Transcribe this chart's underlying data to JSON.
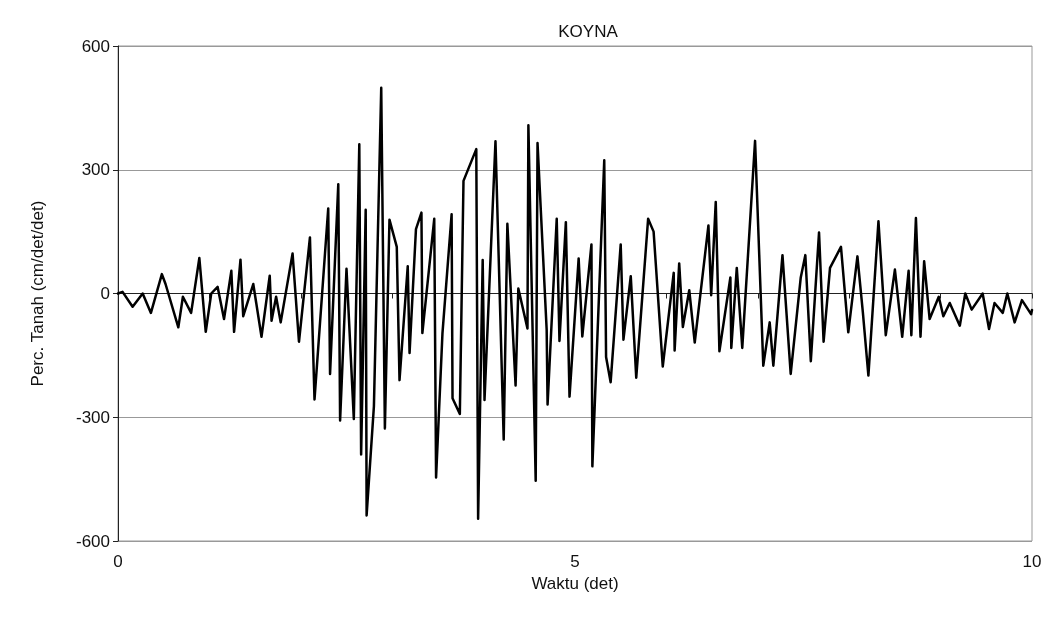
{
  "chart_data": {
    "type": "line",
    "title": "KOYNA",
    "xlabel": "Waktu (det)",
    "ylabel": "Perc. Tanah (cm/det/det)",
    "xlim": [
      0,
      10
    ],
    "ylim": [
      -600,
      600
    ],
    "xticks": [
      0,
      {
        "value": 1,
        "label": null
      },
      {
        "value": 2,
        "label": null
      },
      {
        "value": 3,
        "label": null
      },
      {
        "value": 4,
        "label": null
      },
      5,
      {
        "value": 6,
        "label": null
      },
      {
        "value": 7,
        "label": null
      },
      {
        "value": 8,
        "label": null
      },
      {
        "value": 9,
        "label": null
      },
      10
    ],
    "yticks": [
      -600,
      -300,
      0,
      300,
      600
    ],
    "grid": "y",
    "marker": "none",
    "line_style": "solid",
    "series": [
      {
        "color": "#000000",
        "x": [
          0,
          0.05,
          0.16,
          0.27,
          0.36,
          0.48,
          0.52,
          0.66,
          0.71,
          0.8,
          0.89,
          0.96,
          1.02,
          1.09,
          1.16,
          1.24,
          1.27,
          1.34,
          1.37,
          1.48,
          1.57,
          1.66,
          1.68,
          1.73,
          1.78,
          1.91,
          1.98,
          2.1,
          2.15,
          2.3,
          2.32,
          2.41,
          2.43,
          2.5,
          2.58,
          2.64,
          2.66,
          2.71,
          2.72,
          2.8,
          2.88,
          2.92,
          2.97,
          3.05,
          3.08,
          3.17,
          3.19,
          3.26,
          3.32,
          3.33,
          3.46,
          3.48,
          3.55,
          3.65,
          3.66,
          3.74,
          3.78,
          3.92,
          3.94,
          3.99,
          4.01,
          4.13,
          4.22,
          4.26,
          4.35,
          4.38,
          4.48,
          4.49,
          4.57,
          4.59,
          4.69,
          4.7,
          4.8,
          4.83,
          4.9,
          4.94,
          5.04,
          5.08,
          5.18,
          5.19,
          5.32,
          5.34,
          5.39,
          5.5,
          5.53,
          5.61,
          5.67,
          5.8,
          5.86,
          5.96,
          6.08,
          6.09,
          6.14,
          6.18,
          6.25,
          6.31,
          6.46,
          6.49,
          6.54,
          6.58,
          6.7,
          6.71,
          6.77,
          6.83,
          6.97,
          7.06,
          7.13,
          7.17,
          7.27,
          7.36,
          7.47,
          7.52,
          7.58,
          7.67,
          7.72,
          7.79,
          7.91,
          7.99,
          8.09,
          8.15,
          8.21,
          8.32,
          8.4,
          8.5,
          8.58,
          8.65,
          8.68,
          8.73,
          8.78,
          8.82,
          8.88,
          8.98,
          9.03,
          9.1,
          9.21,
          9.27,
          9.34,
          9.46,
          9.53,
          9.59,
          9.68,
          9.73,
          9.81,
          9.89,
          9.99,
          10
        ],
        "values": [
          0,
          4,
          -32,
          0,
          -47,
          47,
          23,
          -82,
          -8,
          -47,
          86,
          -93,
          0,
          16,
          -62,
          55,
          -93,
          82,
          -55,
          23,
          -105,
          43,
          -66,
          -8,
          -70,
          97,
          -117,
          136,
          -257,
          206,
          -195,
          265,
          -308,
          60,
          -304,
          362,
          -390,
          203,
          -538,
          -273,
          499,
          -327,
          179,
          113,
          -210,
          66,
          -144,
          156,
          196,
          -96,
          181,
          -446,
          -96,
          192,
          -254,
          -292,
          273,
          350,
          -546,
          81,
          -258,
          369,
          -354,
          169,
          -223,
          12,
          -85,
          408,
          -454,
          365,
          -88,
          -269,
          181,
          -115,
          173,
          -250,
          85,
          -104,
          119,
          -419,
          323,
          -154,
          -215,
          119,
          -112,
          42,
          -204,
          181,
          150,
          -177,
          50,
          -138,
          73,
          -81,
          8,
          -119,
          165,
          -4,
          222,
          -140,
          39,
          -132,
          62,
          -132,
          370,
          -175,
          -70,
          -175,
          93,
          -195,
          39,
          93,
          -164,
          148,
          -117,
          62,
          113,
          -94,
          90,
          -47,
          -199,
          175,
          -101,
          58,
          -105,
          55,
          -101,
          183,
          -105,
          78,
          -62,
          -8,
          -55,
          -23,
          -78,
          0,
          -39,
          0,
          -86,
          -23,
          -47,
          0,
          -70,
          -16,
          -50,
          -40
        ]
      }
    ]
  }
}
